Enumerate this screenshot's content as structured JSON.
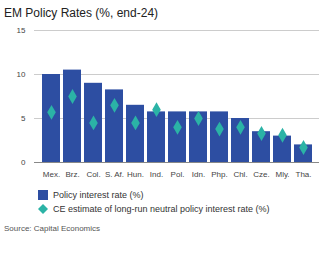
{
  "chart_data": {
    "type": "bar",
    "title": "EM Policy Rates (%, end-24)",
    "caption": "Source: Capital Economics",
    "categories": [
      "Mex.",
      "Brz.",
      "Col.",
      "S. Af.",
      "Hun.",
      "Ind.",
      "Pol.",
      "Idn.",
      "Php.",
      "Chl.",
      "Cze.",
      "Mly.",
      "Tha."
    ],
    "series": [
      {
        "name": "Policy interest rate (%)",
        "type": "bar",
        "color": "#2d4ea2",
        "marker": "square",
        "values": [
          10.0,
          10.5,
          9.0,
          8.25,
          6.5,
          5.75,
          5.75,
          5.75,
          5.75,
          5.0,
          3.5,
          3.0,
          2.0
        ]
      },
      {
        "name": "CE estimate of long-run neutral policy interest rate (%)",
        "type": "scatter",
        "color": "#2bb3a6",
        "marker": "diamond",
        "values": [
          5.7,
          7.5,
          4.5,
          6.5,
          4.5,
          6.0,
          4.0,
          5.0,
          3.8,
          4.0,
          3.3,
          3.1,
          1.7
        ]
      }
    ],
    "ylim": [
      0,
      15
    ],
    "yticks": [
      0,
      5,
      10,
      15
    ],
    "grid": true,
    "legend": "bottom"
  }
}
